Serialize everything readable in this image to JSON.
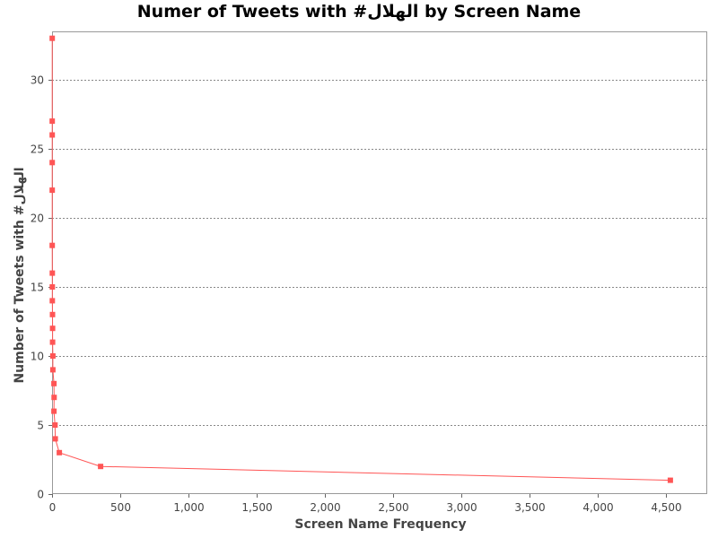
{
  "chart_data": {
    "type": "line",
    "title": "Numer of Tweets with #الهلال by Screen Name",
    "xlabel": "Screen Name Frequency",
    "ylabel": "Number of Tweets with #الهلال",
    "xlim": [
      0,
      4800
    ],
    "ylim": [
      0,
      33.5
    ],
    "x_ticks": [
      0,
      500,
      1000,
      1500,
      2000,
      2500,
      3000,
      3500,
      4000,
      4500
    ],
    "x_tick_labels": [
      "0",
      "500",
      "1,000",
      "1,500",
      "2,000",
      "2,500",
      "3,000",
      "3,500",
      "4,000",
      "4,500"
    ],
    "y_ticks": [
      0,
      5,
      10,
      15,
      20,
      25,
      30
    ],
    "y_tick_labels": [
      "0",
      "5",
      "10",
      "15",
      "20",
      "25",
      "30"
    ],
    "grid": "horizontal dashed",
    "series": [
      {
        "color": "#ff5555",
        "points": [
          [
            1,
            33
          ],
          [
            1,
            27
          ],
          [
            1,
            26
          ],
          [
            1,
            24
          ],
          [
            1,
            22
          ],
          [
            1,
            18
          ],
          [
            2,
            16
          ],
          [
            2,
            15
          ],
          [
            2,
            14
          ],
          [
            3,
            13
          ],
          [
            4,
            12
          ],
          [
            4,
            11
          ],
          [
            6,
            10
          ],
          [
            6,
            9
          ],
          [
            14,
            8
          ],
          [
            15,
            7
          ],
          [
            14,
            6
          ],
          [
            22,
            5
          ],
          [
            24,
            4
          ],
          [
            53,
            3
          ],
          [
            356,
            2
          ],
          [
            4530,
            1
          ]
        ]
      }
    ]
  }
}
